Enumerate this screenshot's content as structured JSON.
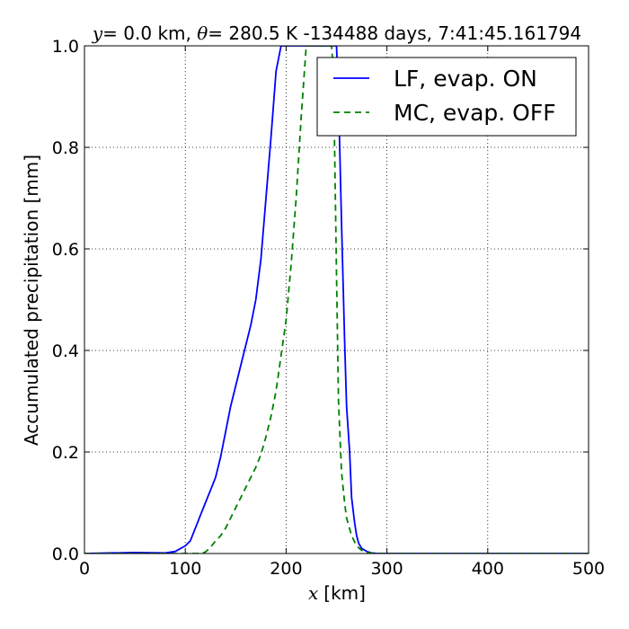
{
  "chart_data": {
    "type": "line",
    "title": "y = 0.0 km, θ = 280.5 K -134488 days, 7:41:45.161794",
    "title_parts": {
      "y_symbol": "y",
      "y_value": "= 0.0 km, ",
      "theta_symbol": "θ",
      "theta_value": "= 280.5 K -134488 days, 7:41:45.161794"
    },
    "xlabel": "[km]",
    "xlabel_symbol": "x",
    "ylabel": "Accumulated precipitation [mm]",
    "xlim": [
      0,
      500
    ],
    "ylim": [
      0,
      1.0
    ],
    "xticks": [
      0,
      100,
      200,
      300,
      400,
      500
    ],
    "xtick_labels": [
      "0",
      "100",
      "200",
      "300",
      "400",
      "500"
    ],
    "yticks": [
      0.0,
      0.2,
      0.4,
      0.6,
      0.8,
      1.0
    ],
    "ytick_labels": [
      "0.0",
      "0.2",
      "0.4",
      "0.6",
      "0.8",
      "1.0"
    ],
    "grid": true,
    "grid_style": "dotted",
    "legend_position": "top-right",
    "series": [
      {
        "name": "LF, evap. ON",
        "color": "#0000ff",
        "linestyle": "solid",
        "x": [
          0,
          50,
          80,
          90,
          100,
          105,
          110,
          115,
          120,
          125,
          130,
          135,
          140,
          145,
          150,
          155,
          160,
          165,
          170,
          175,
          180,
          185,
          190,
          195,
          250,
          252,
          255,
          258,
          260,
          263,
          265,
          268,
          270,
          272,
          275,
          280,
          285,
          290,
          300,
          400,
          500
        ],
        "y": [
          0.0,
          0.002,
          0.001,
          0.004,
          0.015,
          0.025,
          0.05,
          0.075,
          0.1,
          0.125,
          0.15,
          0.19,
          0.24,
          0.29,
          0.33,
          0.37,
          0.41,
          0.45,
          0.5,
          0.58,
          0.7,
          0.82,
          0.95,
          1.0,
          1.0,
          0.9,
          0.65,
          0.42,
          0.29,
          0.2,
          0.11,
          0.06,
          0.035,
          0.02,
          0.01,
          0.004,
          0.001,
          0.0,
          0.0,
          0.0,
          0.0
        ]
      },
      {
        "name": "MC, evap. OFF",
        "color": "#008000",
        "linestyle": "dashed",
        "x": [
          0,
          100,
          110,
          115,
          120,
          125,
          130,
          135,
          140,
          145,
          150,
          155,
          160,
          165,
          170,
          175,
          180,
          185,
          190,
          195,
          200,
          205,
          210,
          215,
          220,
          245,
          247,
          250,
          252,
          255,
          258,
          260,
          265,
          270,
          275,
          280,
          290,
          300,
          500
        ],
        "y": [
          0.0,
          0.0,
          0.0,
          0.0,
          0.003,
          0.012,
          0.025,
          0.035,
          0.05,
          0.07,
          0.09,
          0.11,
          0.13,
          0.15,
          0.17,
          0.195,
          0.23,
          0.27,
          0.32,
          0.39,
          0.46,
          0.57,
          0.7,
          0.86,
          1.0,
          1.0,
          0.95,
          0.55,
          0.3,
          0.16,
          0.1,
          0.07,
          0.035,
          0.015,
          0.006,
          0.002,
          0.0,
          0.0,
          0.0
        ]
      }
    ]
  }
}
